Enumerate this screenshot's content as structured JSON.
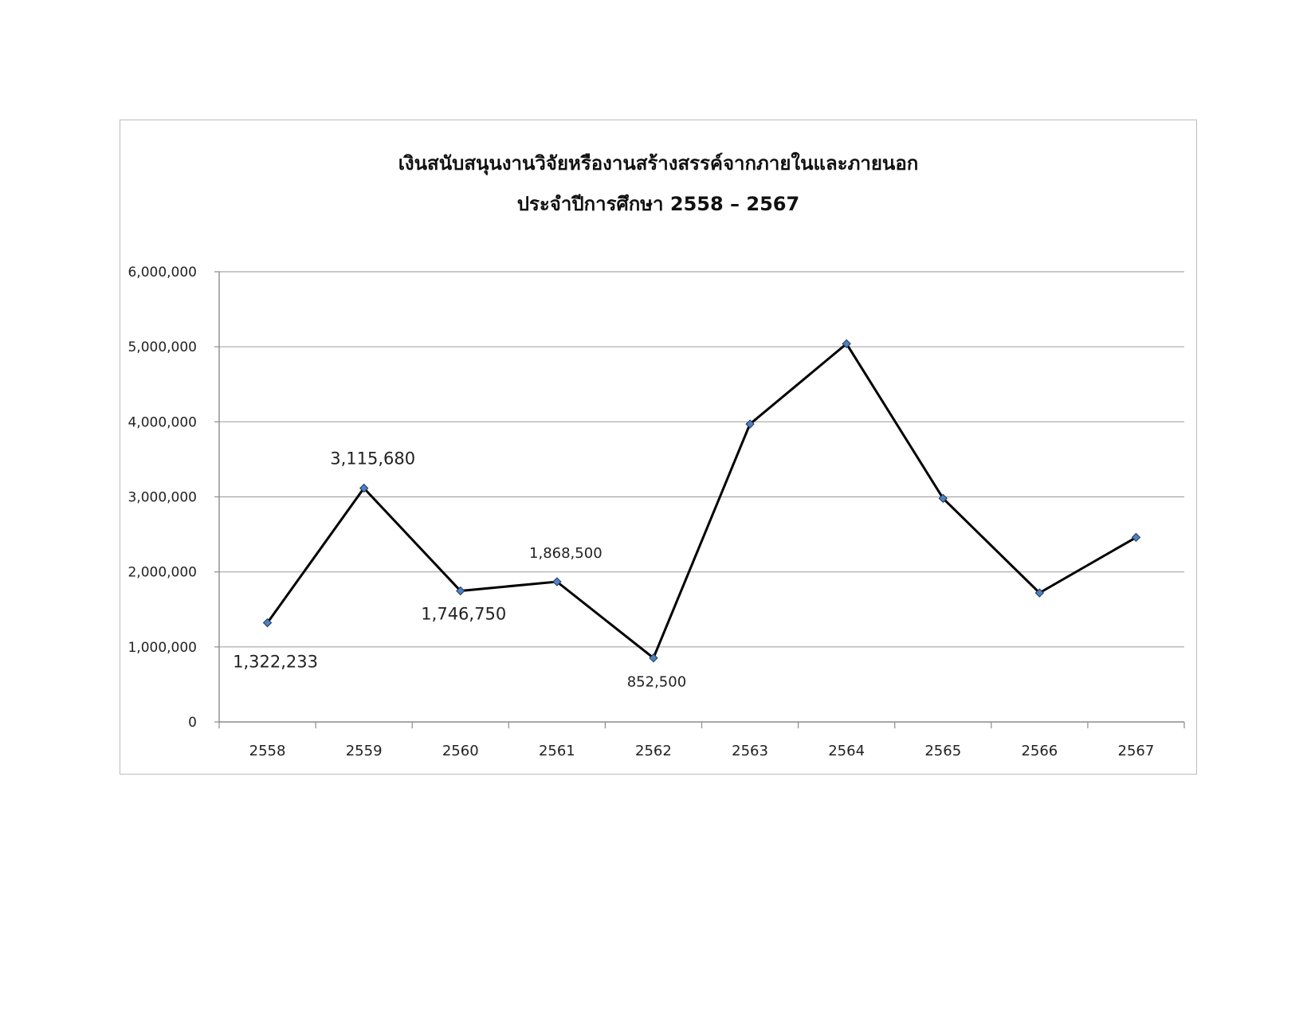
{
  "chart_data": {
    "type": "line",
    "title": "เงินสนับสนุนงานวิจัยหรืองานสร้างสรรค์จากภายในและภายนอก",
    "subtitle": "ประจำปีการศึกษา 2558 – 2567",
    "xlabel": "",
    "ylabel": "",
    "categories": [
      "2558",
      "2559",
      "2560",
      "2561",
      "2562",
      "2563",
      "2564",
      "2565",
      "2566",
      "2567"
    ],
    "series": [
      {
        "values": [
          1322233,
          3115680,
          1746750,
          1868500,
          852500,
          3970000,
          5040000,
          2980000,
          1720000,
          2460000
        ]
      }
    ],
    "ylim": [
      0,
      6000000
    ],
    "y_ticks": [
      0,
      1000000,
      2000000,
      3000000,
      4000000,
      5000000,
      6000000
    ],
    "y_tick_labels": [
      "0",
      "1,000,000",
      "2,000,000",
      "3,000,000",
      "4,000,000",
      "5,000,000",
      "6,000,000"
    ],
    "data_labels": [
      {
        "index": 0,
        "text": "1,322,233",
        "placement": "below-left"
      },
      {
        "index": 1,
        "text": "3,115,680",
        "placement": "above"
      },
      {
        "index": 2,
        "text": "1,746,750",
        "placement": "below"
      },
      {
        "index": 3,
        "text": "1,868,500",
        "placement": "above"
      },
      {
        "index": 4,
        "text": "852,500",
        "placement": "below"
      }
    ],
    "grid": true,
    "legend": "none",
    "colors": {
      "line": "#000000",
      "marker_fill": "#4f81bd",
      "marker_stroke": "#1f3a60",
      "grid": "#a6a6a6",
      "axis": "#8c8c8c"
    }
  }
}
